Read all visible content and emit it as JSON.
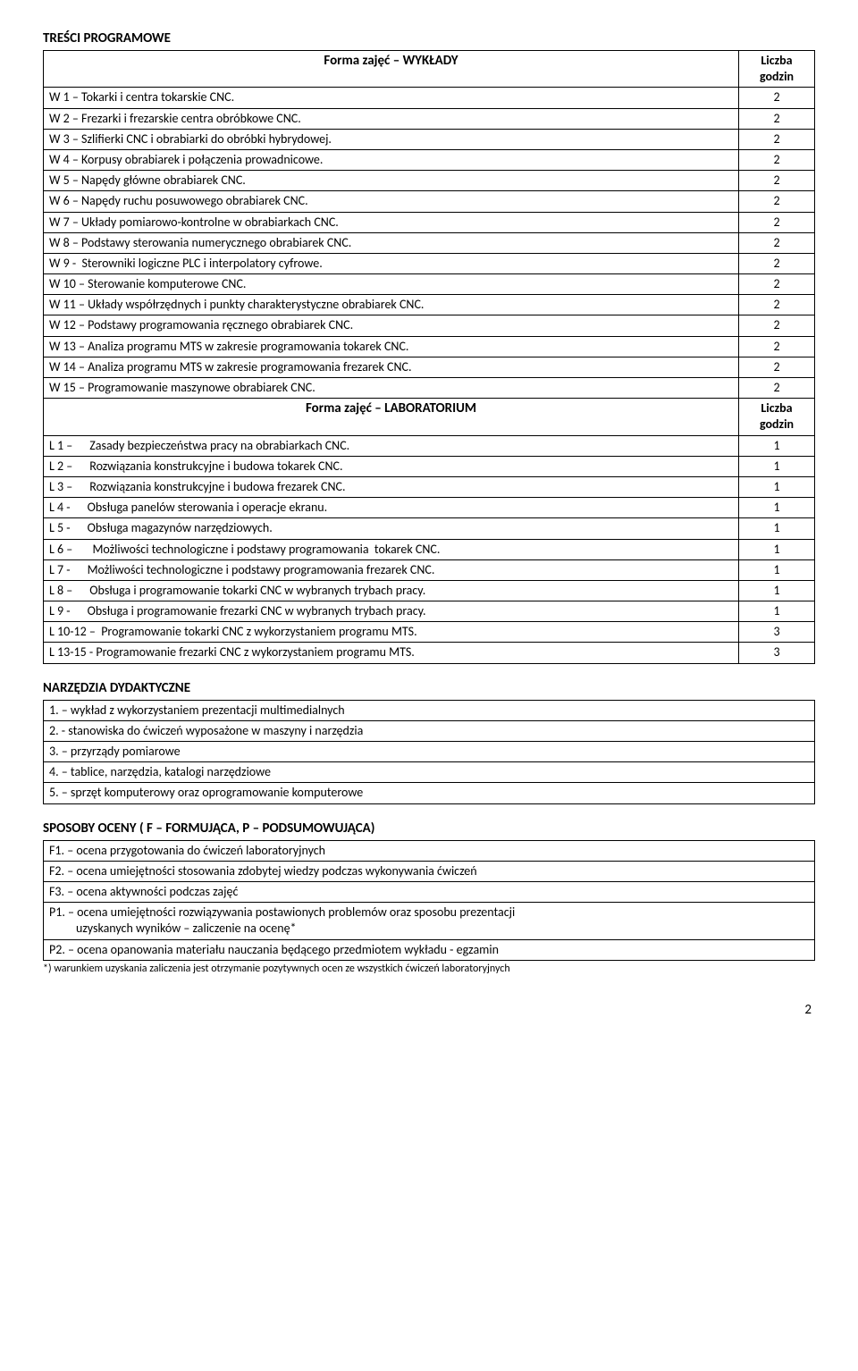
{
  "section1_heading": "TREŚCI PROGRAMOWE",
  "wyklady_header": "Forma zajęć – WYKŁADY",
  "liczba_header": "Liczba godzin",
  "wyklady": [
    {
      "label": "W 1 – Tokarki i centra tokarskie CNC.",
      "hrs": "2"
    },
    {
      "label": "W 2 – Frezarki i frezarskie centra obróbkowe CNC.",
      "hrs": "2"
    },
    {
      "label": "W 3 – Szlifierki CNC i obrabiarki do obróbki hybrydowej.",
      "hrs": "2"
    },
    {
      "label": "W 4 – Korpusy obrabiarek i połączenia prowadnicowe.",
      "hrs": "2"
    },
    {
      "label": "W 5 – Napędy główne obrabiarek CNC.",
      "hrs": "2"
    },
    {
      "label": "W 6 – Napędy ruchu posuwowego obrabiarek CNC.",
      "hrs": "2"
    },
    {
      "label": "W 7 – Układy pomiarowo-kontrolne w obrabiarkach CNC.",
      "hrs": "2"
    },
    {
      "label": "W 8 – Podstawy sterowania numerycznego obrabiarek CNC.",
      "hrs": "2"
    },
    {
      "label": "W 9 -  Sterowniki logiczne PLC i interpolatory cyfrowe.",
      "hrs": "2"
    },
    {
      "label": "W 10 – Sterowanie komputerowe CNC.",
      "hrs": "2"
    },
    {
      "label": "W 11 – Układy współrzędnych i punkty charakterystyczne obrabiarek CNC.",
      "hrs": "2"
    },
    {
      "label": "W 12 – Podstawy programowania ręcznego obrabiarek CNC.",
      "hrs": "2"
    },
    {
      "label": "W 13 – Analiza programu MTS w zakresie programowania tokarek CNC.",
      "hrs": "2"
    },
    {
      "label": "W 14 – Analiza programu MTS w zakresie programowania frezarek CNC.",
      "hrs": "2"
    },
    {
      "label": "W 15 – Programowanie maszynowe obrabiarek CNC.",
      "hrs": "2"
    }
  ],
  "lab_header": "Forma zajęć – LABORATORIUM",
  "lab": [
    {
      "label": "L 1 –      Zasady bezpieczeństwa pracy na obrabiarkach CNC.",
      "hrs": "1"
    },
    {
      "label": "L 2 –      Rozwiązania konstrukcyjne i budowa tokarek CNC.",
      "hrs": "1"
    },
    {
      "label": "L 3 –      Rozwiązania konstrukcyjne i budowa frezarek CNC.",
      "hrs": "1"
    },
    {
      "label": "L 4 -      Obsługa panelów sterowania i operacje ekranu.",
      "hrs": "1"
    },
    {
      "label": "L 5 -      Obsługa magazynów narzędziowych.",
      "hrs": "1"
    },
    {
      "label": "L 6 –       Możliwości technologiczne i podstawy programowania  tokarek CNC.",
      "hrs": "1"
    },
    {
      "label": "L 7 -      Możliwości technologiczne i podstawy programowania frezarek CNC.",
      "hrs": "1"
    },
    {
      "label": "L 8 –      Obsługa i programowanie tokarki CNC w wybranych trybach pracy.",
      "hrs": "1"
    },
    {
      "label": "L 9 -      Obsługa i programowanie frezarki CNC w wybranych trybach pracy.",
      "hrs": "1"
    },
    {
      "label": "L 10-12 –  Programowanie tokarki CNC z wykorzystaniem programu MTS.",
      "hrs": "3"
    },
    {
      "label": "L 13-15 - Programowanie frezarki CNC z wykorzystaniem programu MTS.",
      "hrs": "3"
    }
  ],
  "section2_heading": "NARZĘDZIA DYDAKTYCZNE",
  "tools": [
    "1. – wykład z wykorzystaniem prezentacji multimedialnych",
    "2. - stanowiska do ćwiczeń wyposażone w maszyny i narzędzia",
    "3. – przyrządy pomiarowe",
    "4. – tablice, narzędzia, katalogi narzędziowe",
    "5. – sprzęt komputerowy oraz oprogramowanie komputerowe"
  ],
  "section3_heading": "SPOSOBY OCENY ( F – FORMUJĄCA, P – PODSUMOWUJĄCA)",
  "f1": "F1. – ocena przygotowania do ćwiczeń laboratoryjnych",
  "f2": "F2. – ocena umiejętności stosowania zdobytej wiedzy podczas wykonywania ćwiczeń",
  "f3": "F3. – ocena aktywności podczas zajęć",
  "p1_a": "P1. – ocena umiejętności rozwiązywania postawionych problemów oraz sposobu prezentacji",
  "p1_b": "uzyskanych wyników – zaliczenie na ocenę*",
  "p2": "P2. – ocena opanowania materiału nauczania będącego przedmiotem wykładu - egzamin",
  "footnote": "*) warunkiem uzyskania zaliczenia jest otrzymanie pozytywnych ocen ze wszystkich ćwiczeń laboratoryjnych",
  "page_number": "2"
}
